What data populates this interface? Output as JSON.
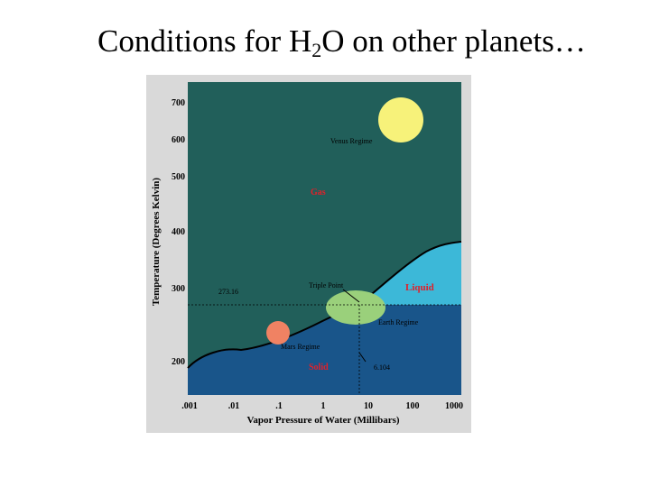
{
  "slide": {
    "title_prefix": "Conditions for H",
    "title_sub": "2",
    "title_suffix": "O on other planets…"
  },
  "diagram": {
    "y_axis_label": "Temperature (Degrees Kelvin)",
    "x_axis_label": "Vapor Pressure of Water (Millibars)",
    "y_ticks": [
      "700",
      "600",
      "500",
      "400",
      "300",
      "200"
    ],
    "x_ticks": [
      ".001",
      ".01",
      ".1",
      "1",
      "10",
      "100",
      "1000"
    ],
    "regions": {
      "gas": "Gas",
      "liquid": "Liquid",
      "solid": "Solid"
    },
    "annotations": {
      "triple_temp": "273.16",
      "triple_point": "Triple Point",
      "triple_pressure": "6.104",
      "venus": "Venus Regime",
      "earth": "Earth Regime",
      "mars": "Mars Regime"
    },
    "colors": {
      "gas": "#215f5a",
      "liquid": "#3cb8d8",
      "solid": "#19558a",
      "venus": "#f7f27a",
      "earth": "#9ad07b",
      "mars": "#f08263",
      "label_red": "#e0202a",
      "frame": "#d9d9d9"
    }
  }
}
